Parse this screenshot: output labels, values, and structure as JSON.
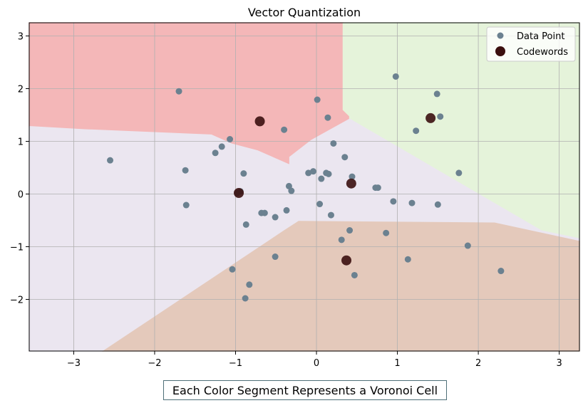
{
  "chart_data": {
    "type": "scatter",
    "title": "Vector Quantization",
    "xlim": [
      -3.55,
      3.25
    ],
    "ylim": [
      -2.98,
      3.25
    ],
    "xticks": [
      -3,
      -2,
      -1,
      0,
      1,
      2,
      3
    ],
    "yticks": [
      -2,
      -1,
      0,
      1,
      2,
      3
    ],
    "xtick_labels": [
      "−3",
      "−2",
      "−1",
      "0",
      "1",
      "2",
      "3"
    ],
    "ytick_labels": [
      "−2",
      "−1",
      "0",
      "1",
      "2",
      "3"
    ],
    "grid": true,
    "legend_position": "top-right",
    "colors": {
      "data_point": "#6b8190",
      "codeword": "#3b0f0f",
      "region_top_left": "#f4b7b8",
      "region_top_right": "#e5f3da",
      "region_middle": "#ebe6f0",
      "region_bottom": "#e4c9bb",
      "grid": "#b0b0b0"
    },
    "series": [
      {
        "name": "Data Point",
        "points": [
          [
            -2.55,
            0.64
          ],
          [
            -1.7,
            1.95
          ],
          [
            -1.62,
            0.45
          ],
          [
            -1.61,
            -0.21
          ],
          [
            -1.25,
            0.78
          ],
          [
            -1.17,
            0.9
          ],
          [
            -1.07,
            1.04
          ],
          [
            -1.04,
            -1.43
          ],
          [
            -0.98,
            0.02
          ],
          [
            -0.94,
            0.05
          ],
          [
            -0.9,
            0.39
          ],
          [
            -0.87,
            -0.58
          ],
          [
            -0.83,
            -1.72
          ],
          [
            -0.88,
            -1.98
          ],
          [
            -0.68,
            -0.36
          ],
          [
            -0.64,
            -0.36
          ],
          [
            -0.51,
            -0.44
          ],
          [
            -0.51,
            -1.19
          ],
          [
            -0.4,
            1.22
          ],
          [
            -0.37,
            -0.31
          ],
          [
            -0.34,
            0.15
          ],
          [
            -0.31,
            0.06
          ],
          [
            -0.1,
            0.4
          ],
          [
            -0.04,
            0.43
          ],
          [
            0.01,
            1.79
          ],
          [
            0.04,
            -0.19
          ],
          [
            0.06,
            0.29
          ],
          [
            0.12,
            0.4
          ],
          [
            0.14,
            1.45
          ],
          [
            0.15,
            0.38
          ],
          [
            0.18,
            -0.4
          ],
          [
            0.21,
            0.96
          ],
          [
            0.31,
            -0.87
          ],
          [
            0.35,
            0.7
          ],
          [
            0.41,
            -0.69
          ],
          [
            0.44,
            0.33
          ],
          [
            0.47,
            -1.54
          ],
          [
            0.73,
            0.12
          ],
          [
            0.76,
            0.12
          ],
          [
            0.86,
            -0.74
          ],
          [
            0.95,
            -0.14
          ],
          [
            0.98,
            2.23
          ],
          [
            1.13,
            -1.24
          ],
          [
            1.18,
            -0.17
          ],
          [
            1.23,
            1.2
          ],
          [
            1.49,
            1.9
          ],
          [
            1.5,
            -0.2
          ],
          [
            1.53,
            1.47
          ],
          [
            1.76,
            0.4
          ],
          [
            1.87,
            -0.98
          ],
          [
            2.28,
            -1.46
          ]
        ]
      },
      {
        "name": "Codewords",
        "points": [
          [
            -0.7,
            1.38
          ],
          [
            -0.96,
            0.02
          ],
          [
            0.43,
            0.2
          ],
          [
            0.37,
            -1.26
          ],
          [
            1.41,
            1.44
          ]
        ]
      }
    ]
  },
  "caption": "Each Color Segment Represents a Voronoi Cell"
}
